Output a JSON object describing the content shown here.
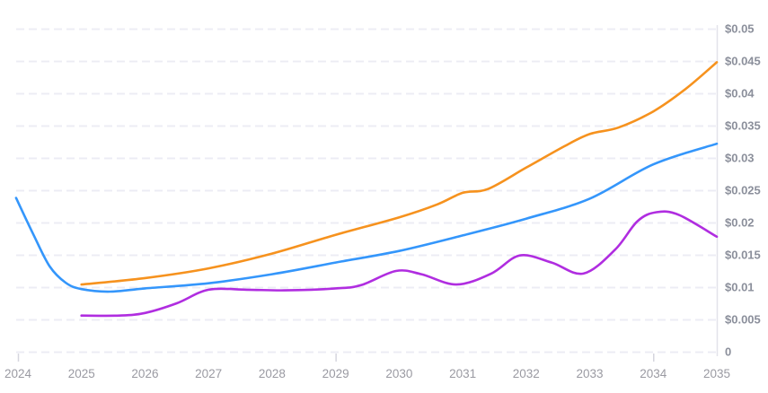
{
  "chart_data": {
    "type": "line",
    "title": "",
    "xlabel": "",
    "ylabel": "",
    "legend": "none",
    "grid": "horizontal-dashed",
    "x_range": [
      2024,
      2035
    ],
    "y_range": [
      0,
      0.05
    ],
    "x_tick_labels": [
      "2024",
      "2025",
      "2026",
      "2027",
      "2028",
      "2029",
      "2030",
      "2031",
      "2032",
      "2033",
      "2034",
      "2035"
    ],
    "x_tick_years": [
      2024,
      2025,
      2026,
      2027,
      2028,
      2029,
      2030,
      2031,
      2032,
      2033,
      2034,
      2035
    ],
    "x_axis_tick_marks": [
      2024,
      2029,
      2034
    ],
    "y_ticks": [
      {
        "value": 0,
        "label": "0"
      },
      {
        "value": 0.005,
        "label": "$0.005"
      },
      {
        "value": 0.01,
        "label": "$0.01"
      },
      {
        "value": 0.015,
        "label": "$0.015"
      },
      {
        "value": 0.02,
        "label": "$0.02"
      },
      {
        "value": 0.025,
        "label": "$0.025"
      },
      {
        "value": 0.03,
        "label": "$0.03"
      },
      {
        "value": 0.035,
        "label": "$0.035"
      },
      {
        "value": 0.04,
        "label": "$0.04"
      },
      {
        "value": 0.045,
        "label": "$0.045"
      },
      {
        "value": 0.05,
        "label": "$0.05"
      }
    ],
    "series": [
      {
        "id": "blue-line",
        "color": "#3496fb",
        "points": [
          [
            2023.97,
            0.0238
          ],
          [
            2024.25,
            0.018
          ],
          [
            2024.5,
            0.0132
          ],
          [
            2024.75,
            0.0107
          ],
          [
            2025,
            0.0097
          ],
          [
            2025.45,
            0.0093
          ],
          [
            2026,
            0.0098
          ],
          [
            2027,
            0.0106
          ],
          [
            2028,
            0.012
          ],
          [
            2029,
            0.0138
          ],
          [
            2030,
            0.0156
          ],
          [
            2031,
            0.018
          ],
          [
            2032,
            0.0206
          ],
          [
            2033,
            0.0237
          ],
          [
            2034,
            0.029
          ],
          [
            2035,
            0.0322
          ]
        ]
      },
      {
        "id": "orange-line",
        "color": "#f6921e",
        "points": [
          [
            2025,
            0.0104
          ],
          [
            2026,
            0.0114
          ],
          [
            2027,
            0.0129
          ],
          [
            2028,
            0.0152
          ],
          [
            2029,
            0.0181
          ],
          [
            2030,
            0.0208
          ],
          [
            2030.6,
            0.0228
          ],
          [
            2031,
            0.0246
          ],
          [
            2031.4,
            0.0252
          ],
          [
            2032,
            0.0285
          ],
          [
            2032.6,
            0.0318
          ],
          [
            2033,
            0.0337
          ],
          [
            2033.45,
            0.0347
          ],
          [
            2034,
            0.0372
          ],
          [
            2034.5,
            0.0406
          ],
          [
            2035,
            0.0448
          ]
        ]
      },
      {
        "id": "purple-line",
        "color": "#b02de0",
        "points": [
          [
            2025,
            0.0056
          ],
          [
            2025.6,
            0.0056
          ],
          [
            2026,
            0.006
          ],
          [
            2026.5,
            0.0075
          ],
          [
            2027,
            0.0096
          ],
          [
            2027.6,
            0.0096
          ],
          [
            2028.2,
            0.0095
          ],
          [
            2029,
            0.0098
          ],
          [
            2029.4,
            0.0103
          ],
          [
            2029.95,
            0.0125
          ],
          [
            2030.35,
            0.012
          ],
          [
            2030.9,
            0.0104
          ],
          [
            2031.45,
            0.0121
          ],
          [
            2031.9,
            0.0149
          ],
          [
            2032.4,
            0.0138
          ],
          [
            2032.9,
            0.0121
          ],
          [
            2033.4,
            0.0158
          ],
          [
            2033.75,
            0.0202
          ],
          [
            2034.05,
            0.0216
          ],
          [
            2034.4,
            0.0212
          ],
          [
            2035,
            0.0178
          ]
        ]
      }
    ],
    "style": {
      "gridline_color": "#ececf4",
      "axis_line_color": "#e2e2ea",
      "tick_mark_color": "#d6d6de",
      "x_label_color": "#9a9aa2",
      "y_label_color": "#8b8f9b",
      "background": "#ffffff"
    }
  }
}
